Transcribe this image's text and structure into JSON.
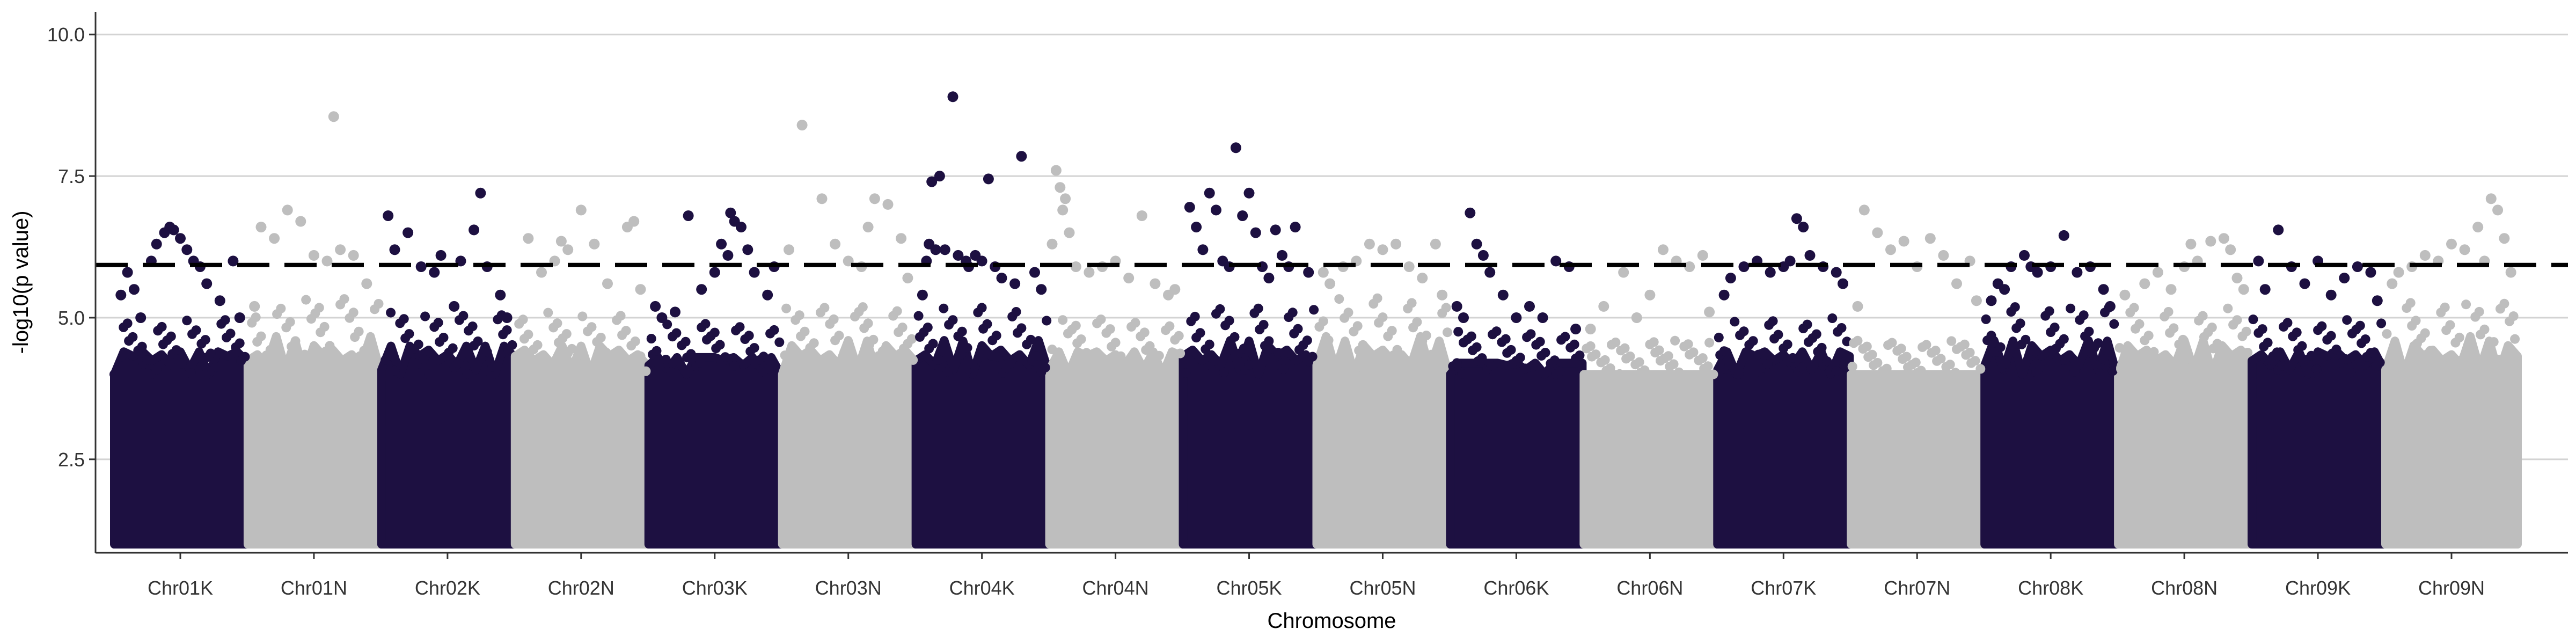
{
  "chart_data": {
    "type": "scatter",
    "subtype": "manhattan",
    "title": "",
    "xlabel": "Chromosome",
    "ylabel": "-log10(p value)",
    "ylim": [
      0.85,
      10.4
    ],
    "y_ticks": [
      "2.5",
      "5.0",
      "7.5",
      "10.0"
    ],
    "y_tick_values": [
      2.5,
      5.0,
      7.5,
      10.0
    ],
    "grid": "horizontal major lines",
    "legend": "none",
    "threshold": 5.93,
    "threshold_style": "dashed black line",
    "colors": {
      "odd": "#1d1041",
      "even": "#bebebe",
      "grid": "#d3d3d3",
      "threshold": "#000000"
    },
    "categories": [
      "Chr01K",
      "Chr01N",
      "Chr02K",
      "Chr02N",
      "Chr03K",
      "Chr03N",
      "Chr04K",
      "Chr04N",
      "Chr05K",
      "Chr05N",
      "Chr06K",
      "Chr06N",
      "Chr07K",
      "Chr07N",
      "Chr08K",
      "Chr08N",
      "Chr09K",
      "Chr09N"
    ],
    "background_band": {
      "min": 1.0,
      "max": 4.0
    },
    "series": [
      {
        "chromosome": "Chr01K",
        "color": "#1d1041",
        "dense_top": 4.4,
        "points": [
          [
            0.05,
            5.4
          ],
          [
            0.1,
            5.8
          ],
          [
            0.15,
            5.5
          ],
          [
            0.2,
            5.0
          ],
          [
            0.28,
            6.0
          ],
          [
            0.32,
            6.3
          ],
          [
            0.38,
            6.5
          ],
          [
            0.42,
            6.6
          ],
          [
            0.45,
            6.55
          ],
          [
            0.5,
            6.4
          ],
          [
            0.55,
            6.2
          ],
          [
            0.6,
            6.0
          ],
          [
            0.65,
            5.9
          ],
          [
            0.7,
            5.6
          ],
          [
            0.8,
            5.3
          ],
          [
            0.9,
            6.0
          ],
          [
            0.95,
            5.0
          ]
        ]
      },
      {
        "chromosome": "Chr01N",
        "color": "#bebebe",
        "dense_top": 4.8,
        "points": [
          [
            0.05,
            5.2
          ],
          [
            0.1,
            6.6
          ],
          [
            0.2,
            6.4
          ],
          [
            0.3,
            6.9
          ],
          [
            0.4,
            6.7
          ],
          [
            0.5,
            6.1
          ],
          [
            0.6,
            6.0
          ],
          [
            0.65,
            8.55
          ],
          [
            0.7,
            6.2
          ],
          [
            0.8,
            6.1
          ],
          [
            0.9,
            5.6
          ]
        ]
      },
      {
        "chromosome": "Chr02K",
        "color": "#1d1041",
        "dense_top": 4.5,
        "points": [
          [
            0.05,
            6.8
          ],
          [
            0.1,
            6.2
          ],
          [
            0.2,
            6.5
          ],
          [
            0.3,
            5.9
          ],
          [
            0.4,
            5.8
          ],
          [
            0.45,
            6.1
          ],
          [
            0.55,
            5.2
          ],
          [
            0.6,
            6.0
          ],
          [
            0.7,
            6.55
          ],
          [
            0.75,
            7.2
          ],
          [
            0.8,
            5.9
          ],
          [
            0.9,
            5.4
          ],
          [
            0.95,
            5.0
          ]
        ]
      },
      {
        "chromosome": "Chr02N",
        "color": "#bebebe",
        "dense_top": 4.5,
        "points": [
          [
            0.1,
            6.4
          ],
          [
            0.2,
            5.8
          ],
          [
            0.3,
            6.0
          ],
          [
            0.35,
            6.35
          ],
          [
            0.4,
            6.2
          ],
          [
            0.5,
            6.9
          ],
          [
            0.6,
            6.3
          ],
          [
            0.7,
            5.6
          ],
          [
            0.85,
            6.6
          ],
          [
            0.9,
            6.7
          ],
          [
            0.95,
            5.5
          ]
        ]
      },
      {
        "chromosome": "Chr03K",
        "color": "#1d1041",
        "dense_top": 4.3,
        "points": [
          [
            0.05,
            5.2
          ],
          [
            0.1,
            5.0
          ],
          [
            0.2,
            5.1
          ],
          [
            0.3,
            6.8
          ],
          [
            0.4,
            5.5
          ],
          [
            0.5,
            5.8
          ],
          [
            0.55,
            6.3
          ],
          [
            0.6,
            6.1
          ],
          [
            0.62,
            6.85
          ],
          [
            0.65,
            6.7
          ],
          [
            0.7,
            6.6
          ],
          [
            0.75,
            6.2
          ],
          [
            0.8,
            5.8
          ],
          [
            0.9,
            5.4
          ],
          [
            0.95,
            5.9
          ]
        ]
      },
      {
        "chromosome": "Chr03N",
        "color": "#bebebe",
        "dense_top": 4.6,
        "points": [
          [
            0.05,
            6.2
          ],
          [
            0.15,
            8.4
          ],
          [
            0.3,
            7.1
          ],
          [
            0.4,
            6.3
          ],
          [
            0.5,
            6.0
          ],
          [
            0.6,
            5.9
          ],
          [
            0.65,
            6.6
          ],
          [
            0.7,
            7.1
          ],
          [
            0.8,
            7.0
          ],
          [
            0.9,
            6.4
          ],
          [
            0.95,
            5.7
          ]
        ]
      },
      {
        "chromosome": "Chr04K",
        "color": "#1d1041",
        "dense_top": 4.6,
        "points": [
          [
            0.05,
            5.4
          ],
          [
            0.08,
            6.0
          ],
          [
            0.1,
            6.3
          ],
          [
            0.12,
            7.4
          ],
          [
            0.15,
            6.2
          ],
          [
            0.18,
            7.5
          ],
          [
            0.22,
            6.2
          ],
          [
            0.28,
            8.9
          ],
          [
            0.32,
            6.1
          ],
          [
            0.38,
            6.0
          ],
          [
            0.4,
            5.9
          ],
          [
            0.45,
            6.1
          ],
          [
            0.5,
            6.0
          ],
          [
            0.55,
            7.45
          ],
          [
            0.6,
            5.9
          ],
          [
            0.65,
            5.7
          ],
          [
            0.75,
            5.6
          ],
          [
            0.8,
            7.85
          ],
          [
            0.9,
            5.8
          ],
          [
            0.95,
            5.5
          ]
        ]
      },
      {
        "chromosome": "Chr04N",
        "color": "#bebebe",
        "dense_top": 4.4,
        "points": [
          [
            0.02,
            6.3
          ],
          [
            0.05,
            7.6
          ],
          [
            0.08,
            7.3
          ],
          [
            0.1,
            6.9
          ],
          [
            0.12,
            7.1
          ],
          [
            0.15,
            6.5
          ],
          [
            0.2,
            5.9
          ],
          [
            0.3,
            5.8
          ],
          [
            0.4,
            5.9
          ],
          [
            0.5,
            6.0
          ],
          [
            0.6,
            5.7
          ],
          [
            0.7,
            6.8
          ],
          [
            0.8,
            5.6
          ],
          [
            0.9,
            5.4
          ],
          [
            0.95,
            5.5
          ]
        ]
      },
      {
        "chromosome": "Chr05K",
        "color": "#1d1041",
        "dense_top": 4.6,
        "points": [
          [
            0.05,
            6.95
          ],
          [
            0.1,
            6.6
          ],
          [
            0.15,
            6.2
          ],
          [
            0.2,
            7.2
          ],
          [
            0.25,
            6.9
          ],
          [
            0.3,
            6.0
          ],
          [
            0.35,
            5.9
          ],
          [
            0.4,
            8.0
          ],
          [
            0.45,
            6.8
          ],
          [
            0.5,
            7.2
          ],
          [
            0.55,
            6.5
          ],
          [
            0.6,
            5.9
          ],
          [
            0.65,
            5.7
          ],
          [
            0.7,
            6.55
          ],
          [
            0.75,
            6.1
          ],
          [
            0.8,
            5.9
          ],
          [
            0.85,
            6.6
          ],
          [
            0.95,
            5.8
          ]
        ]
      },
      {
        "chromosome": "Chr05N",
        "color": "#bebebe",
        "dense_top": 4.8,
        "points": [
          [
            0.05,
            5.8
          ],
          [
            0.1,
            5.6
          ],
          [
            0.2,
            5.9
          ],
          [
            0.3,
            6.0
          ],
          [
            0.4,
            6.3
          ],
          [
            0.5,
            6.2
          ],
          [
            0.6,
            6.3
          ],
          [
            0.7,
            5.9
          ],
          [
            0.8,
            5.7
          ],
          [
            0.9,
            6.3
          ],
          [
            0.95,
            5.4
          ]
        ]
      },
      {
        "chromosome": "Chr06K",
        "color": "#1d1041",
        "dense_top": 4.2,
        "points": [
          [
            0.05,
            5.2
          ],
          [
            0.1,
            5.0
          ],
          [
            0.15,
            6.85
          ],
          [
            0.2,
            6.3
          ],
          [
            0.25,
            6.1
          ],
          [
            0.3,
            5.8
          ],
          [
            0.4,
            5.4
          ],
          [
            0.5,
            5.0
          ],
          [
            0.6,
            5.2
          ],
          [
            0.7,
            5.0
          ],
          [
            0.8,
            6.0
          ],
          [
            0.9,
            5.9
          ],
          [
            0.95,
            4.8
          ]
        ]
      },
      {
        "chromosome": "Chr06N",
        "color": "#bebebe",
        "dense_top": 4.0,
        "points": [
          [
            0.05,
            4.8
          ],
          [
            0.15,
            5.2
          ],
          [
            0.3,
            5.8
          ],
          [
            0.4,
            5.0
          ],
          [
            0.5,
            5.4
          ],
          [
            0.6,
            6.2
          ],
          [
            0.7,
            6.0
          ],
          [
            0.8,
            5.9
          ],
          [
            0.9,
            6.1
          ],
          [
            0.95,
            5.1
          ]
        ]
      },
      {
        "chromosome": "Chr07K",
        "color": "#1d1041",
        "dense_top": 4.4,
        "points": [
          [
            0.05,
            5.4
          ],
          [
            0.1,
            5.7
          ],
          [
            0.2,
            5.9
          ],
          [
            0.3,
            6.0
          ],
          [
            0.4,
            5.8
          ],
          [
            0.5,
            5.9
          ],
          [
            0.55,
            6.0
          ],
          [
            0.6,
            6.75
          ],
          [
            0.65,
            6.6
          ],
          [
            0.7,
            6.1
          ],
          [
            0.8,
            5.9
          ],
          [
            0.9,
            5.8
          ],
          [
            0.95,
            5.6
          ]
        ]
      },
      {
        "chromosome": "Chr07N",
        "color": "#bebebe",
        "dense_top": 4.0,
        "points": [
          [
            0.05,
            5.2
          ],
          [
            0.1,
            6.9
          ],
          [
            0.2,
            6.5
          ],
          [
            0.3,
            6.2
          ],
          [
            0.4,
            6.35
          ],
          [
            0.5,
            5.9
          ],
          [
            0.6,
            6.4
          ],
          [
            0.7,
            6.1
          ],
          [
            0.8,
            5.6
          ],
          [
            0.9,
            6.0
          ],
          [
            0.95,
            5.3
          ]
        ]
      },
      {
        "chromosome": "Chr08K",
        "color": "#1d1041",
        "dense_top": 4.6,
        "points": [
          [
            0.05,
            5.3
          ],
          [
            0.1,
            5.6
          ],
          [
            0.15,
            5.5
          ],
          [
            0.2,
            5.9
          ],
          [
            0.3,
            6.1
          ],
          [
            0.35,
            5.9
          ],
          [
            0.4,
            5.8
          ],
          [
            0.5,
            5.9
          ],
          [
            0.6,
            6.45
          ],
          [
            0.7,
            5.8
          ],
          [
            0.8,
            5.9
          ],
          [
            0.9,
            5.5
          ],
          [
            0.95,
            5.2
          ]
        ]
      },
      {
        "chromosome": "Chr08N",
        "color": "#bebebe",
        "dense_top": 4.6,
        "points": [
          [
            0.05,
            5.4
          ],
          [
            0.2,
            5.6
          ],
          [
            0.3,
            5.8
          ],
          [
            0.4,
            5.5
          ],
          [
            0.5,
            5.9
          ],
          [
            0.55,
            6.3
          ],
          [
            0.6,
            6.0
          ],
          [
            0.7,
            6.35
          ],
          [
            0.8,
            6.4
          ],
          [
            0.85,
            6.2
          ],
          [
            0.9,
            5.7
          ],
          [
            0.95,
            5.5
          ]
        ]
      },
      {
        "chromosome": "Chr09K",
        "color": "#1d1041",
        "dense_top": 4.4,
        "points": [
          [
            0.05,
            6.0
          ],
          [
            0.1,
            5.5
          ],
          [
            0.2,
            6.55
          ],
          [
            0.3,
            5.9
          ],
          [
            0.4,
            5.6
          ],
          [
            0.5,
            6.0
          ],
          [
            0.6,
            5.4
          ],
          [
            0.7,
            5.7
          ],
          [
            0.8,
            5.9
          ],
          [
            0.9,
            5.8
          ],
          [
            0.95,
            5.3
          ]
        ]
      },
      {
        "chromosome": "Chr09N",
        "color": "#bebebe",
        "dense_top": 4.7,
        "points": [
          [
            0.05,
            5.6
          ],
          [
            0.1,
            5.8
          ],
          [
            0.2,
            5.9
          ],
          [
            0.3,
            6.1
          ],
          [
            0.4,
            6.0
          ],
          [
            0.5,
            6.3
          ],
          [
            0.6,
            6.2
          ],
          [
            0.7,
            6.6
          ],
          [
            0.75,
            6.0
          ],
          [
            0.8,
            7.1
          ],
          [
            0.85,
            6.9
          ],
          [
            0.9,
            6.4
          ],
          [
            0.95,
            5.8
          ]
        ]
      }
    ]
  }
}
